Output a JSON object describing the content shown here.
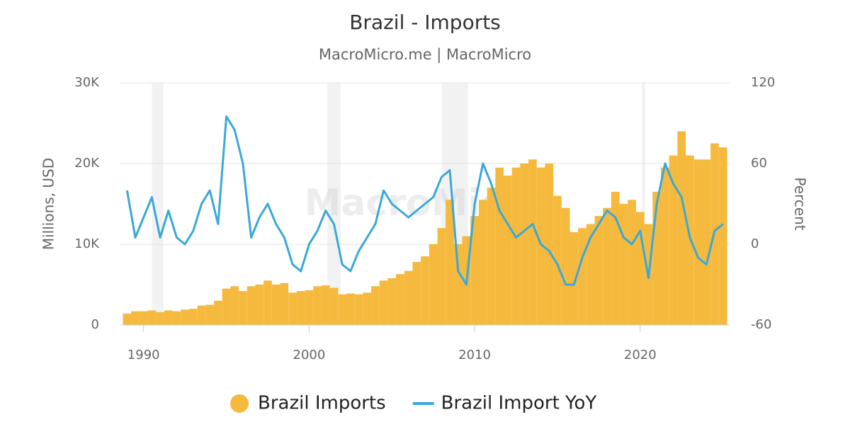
{
  "chart_data": {
    "type": "combo",
    "title": "Brazil - Imports",
    "subtitle": "MacroMicro.me | MacroMicro",
    "watermark": "MacroMicro",
    "x": [
      1989.0,
      1989.5,
      1990.0,
      1990.5,
      1991.0,
      1991.5,
      1992.0,
      1992.5,
      1993.0,
      1993.5,
      1994.0,
      1994.5,
      1995.0,
      1995.5,
      1996.0,
      1996.5,
      1997.0,
      1997.5,
      1998.0,
      1998.5,
      1999.0,
      1999.5,
      2000.0,
      2000.5,
      2001.0,
      2001.5,
      2002.0,
      2002.5,
      2003.0,
      2003.5,
      2004.0,
      2004.5,
      2005.0,
      2005.5,
      2006.0,
      2006.5,
      2007.0,
      2007.5,
      2008.0,
      2008.5,
      2009.0,
      2009.5,
      2010.0,
      2010.5,
      2011.0,
      2011.5,
      2012.0,
      2012.5,
      2013.0,
      2013.5,
      2014.0,
      2014.5,
      2015.0,
      2015.5,
      2016.0,
      2016.5,
      2017.0,
      2017.5,
      2018.0,
      2018.5,
      2019.0,
      2019.5,
      2020.0,
      2020.5,
      2021.0,
      2021.5,
      2022.0,
      2022.5,
      2023.0,
      2023.5,
      2024.0,
      2024.5,
      2025.0
    ],
    "series": [
      {
        "name": "Brazil Imports",
        "type": "bar",
        "color": "#f5b93d",
        "axis": "y",
        "values": [
          1400,
          1700,
          1700,
          1800,
          1600,
          1800,
          1700,
          1900,
          2000,
          2400,
          2500,
          3000,
          4500,
          4800,
          4200,
          4800,
          5000,
          5500,
          5000,
          5200,
          4000,
          4200,
          4300,
          4800,
          4900,
          4600,
          3800,
          3900,
          3800,
          4000,
          4800,
          5500,
          5800,
          6300,
          6700,
          7800,
          8500,
          10000,
          12000,
          15500,
          10000,
          11000,
          13500,
          15500,
          17000,
          19500,
          18500,
          19500,
          20000,
          20500,
          19500,
          20000,
          16000,
          14500,
          11500,
          12000,
          12500,
          13500,
          14500,
          16500,
          15000,
          15500,
          14000,
          12500,
          16500,
          19500,
          21000,
          24000,
          21000,
          20500,
          20500,
          22500,
          22000
        ]
      },
      {
        "name": "Brazil Import YoY",
        "type": "line",
        "color": "#3aa8d8",
        "axis": "y2",
        "values": [
          40,
          5,
          20,
          35,
          5,
          25,
          5,
          0,
          10,
          30,
          40,
          15,
          95,
          85,
          60,
          5,
          20,
          30,
          15,
          5,
          -15,
          -20,
          0,
          10,
          25,
          15,
          -15,
          -20,
          -5,
          5,
          15,
          40,
          30,
          25,
          20,
          25,
          30,
          35,
          50,
          55,
          -20,
          -30,
          30,
          60,
          45,
          25,
          15,
          5,
          10,
          15,
          0,
          -5,
          -15,
          -30,
          -30,
          -10,
          5,
          15,
          25,
          20,
          5,
          0,
          10,
          -25,
          30,
          60,
          45,
          35,
          5,
          -10,
          -15,
          10,
          15
        ]
      }
    ],
    "xlim": [
      1988.6,
      2025.4
    ],
    "xticks": [
      1990,
      2000,
      2010,
      2020
    ],
    "ylabel": "Millions, USD",
    "ylim": [
      0,
      30000
    ],
    "yticks": [
      0,
      {
        "value": 10000,
        "label": "10K"
      },
      {
        "value": 20000,
        "label": "20K"
      },
      {
        "value": 30000,
        "label": "30K"
      }
    ],
    "y2label": "Percent",
    "y2lim": [
      -60,
      120
    ],
    "y2ticks": [
      -60,
      0,
      60,
      120
    ],
    "shaded_periods": [
      [
        1990.5,
        1991.2
      ],
      [
        2001.1,
        2001.9
      ],
      [
        2008.0,
        2009.6
      ],
      [
        2020.1,
        2020.3
      ]
    ],
    "grid": true,
    "legend": "bottom"
  }
}
